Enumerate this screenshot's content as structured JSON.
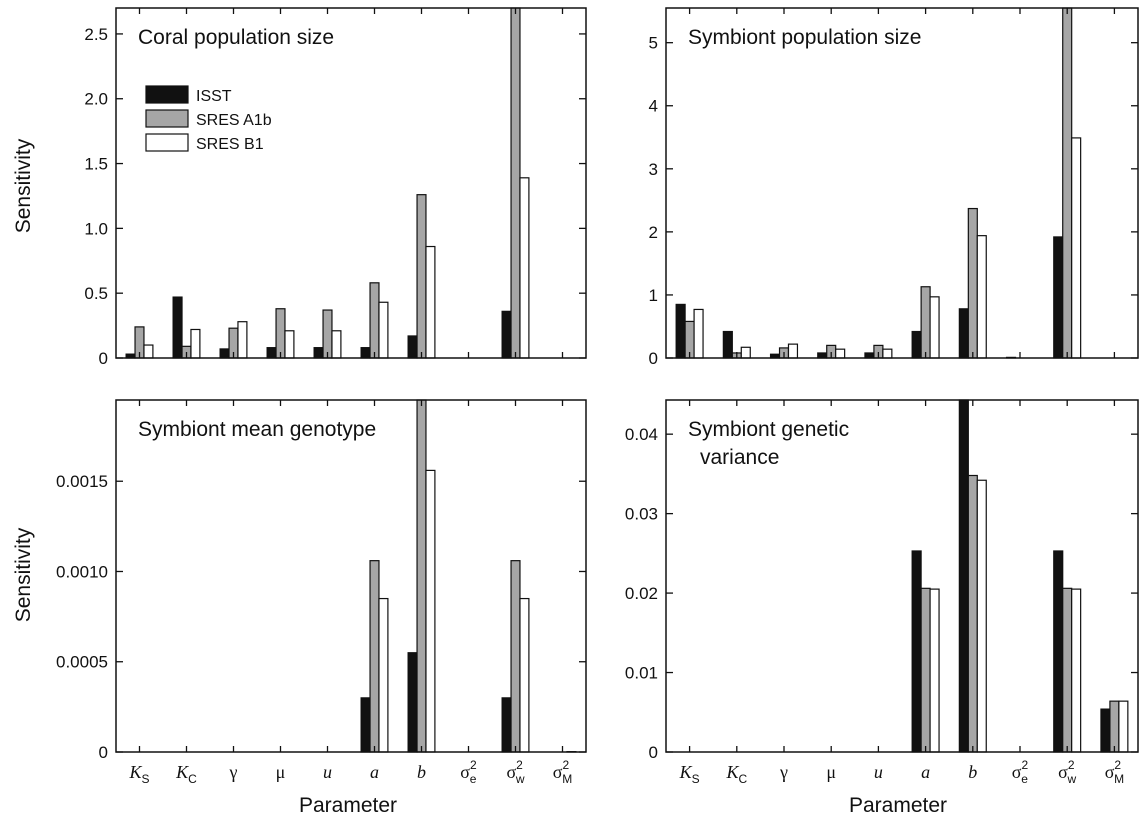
{
  "series_names": [
    "ISST",
    "SRES A1b",
    "SRES B1"
  ],
  "colors": {
    "ISST": "#111111",
    "SRES A1b": "#a6a6a6",
    "SRES B1": "#ffffff",
    "axis": "#111111"
  },
  "x_axis_label": "Parameter",
  "y_axis_label": "Sensitivity",
  "categories": [
    {
      "base": "K",
      "sub": "S",
      "sup": ""
    },
    {
      "base": "K",
      "sub": "C",
      "sup": ""
    },
    {
      "base": "γ",
      "sub": "",
      "sup": ""
    },
    {
      "base": "μ",
      "sub": "",
      "sup": ""
    },
    {
      "base": "u",
      "sub": "",
      "sup": ""
    },
    {
      "base": "a",
      "sub": "",
      "sup": ""
    },
    {
      "base": "b",
      "sub": "",
      "sup": ""
    },
    {
      "base": "σ",
      "sub": "e",
      "sup": "2"
    },
    {
      "base": "σ",
      "sub": "w",
      "sup": "2"
    },
    {
      "base": "σ",
      "sub": "M",
      "sup": "2"
    }
  ],
  "chart_data": [
    {
      "type": "bar",
      "title": "Coral population size",
      "legend": true,
      "legend_position": "top-left",
      "ylim": [
        0,
        2.7
      ],
      "yticks": [
        "0",
        "0.5",
        "1.0",
        "1.5",
        "2.0",
        "2.5"
      ],
      "ytick_values": [
        0,
        0.5,
        1.0,
        1.5,
        2.0,
        2.5
      ],
      "series": [
        {
          "name": "ISST",
          "values": [
            0.03,
            0.47,
            0.07,
            0.08,
            0.08,
            0.08,
            0.17,
            0,
            0.36,
            0
          ]
        },
        {
          "name": "SRES A1b",
          "values": [
            0.24,
            0.09,
            0.23,
            0.38,
            0.37,
            0.58,
            1.26,
            0,
            2.7,
            0
          ]
        },
        {
          "name": "SRES B1",
          "values": [
            0.1,
            0.22,
            0.28,
            0.21,
            0.21,
            0.43,
            0.86,
            0,
            1.39,
            0
          ]
        }
      ]
    },
    {
      "type": "bar",
      "title": "Symbiont population size",
      "legend": false,
      "ylim": [
        0,
        5.55
      ],
      "yticks": [
        "0",
        "1",
        "2",
        "3",
        "4",
        "5"
      ],
      "ytick_values": [
        0,
        1,
        2,
        3,
        4,
        5
      ],
      "series": [
        {
          "name": "ISST",
          "values": [
            0.85,
            0.42,
            0.06,
            0.08,
            0.08,
            0.42,
            0.78,
            0.01,
            1.92,
            0
          ]
        },
        {
          "name": "SRES A1b",
          "values": [
            0.58,
            0.08,
            0.16,
            0.2,
            0.2,
            1.13,
            2.37,
            0,
            5.55,
            0
          ]
        },
        {
          "name": "SRES B1",
          "values": [
            0.77,
            0.17,
            0.22,
            0.14,
            0.14,
            0.97,
            1.94,
            0,
            3.49,
            0
          ]
        }
      ]
    },
    {
      "type": "bar",
      "title": "Symbiont mean genotype",
      "legend": false,
      "ylim": [
        0,
        0.00195
      ],
      "yticks": [
        "0",
        "0.0005",
        "0.0010",
        "0.0015"
      ],
      "ytick_values": [
        0,
        0.0005,
        0.001,
        0.0015
      ],
      "series": [
        {
          "name": "ISST",
          "values": [
            0,
            0,
            0,
            0,
            0,
            0.0003,
            0.00055,
            0,
            0.0003,
            0
          ]
        },
        {
          "name": "SRES A1b",
          "values": [
            0,
            0,
            0,
            0,
            0,
            0.00106,
            0.00195,
            0,
            0.00106,
            0
          ]
        },
        {
          "name": "SRES B1",
          "values": [
            0,
            0,
            0,
            0,
            0,
            0.00085,
            0.00156,
            0,
            0.00085,
            2e-06
          ]
        }
      ]
    },
    {
      "type": "bar",
      "title": "Symbiont genetic variance",
      "title_lines": [
        "Symbiont genetic",
        "variance"
      ],
      "legend": false,
      "ylim": [
        0,
        0.0443
      ],
      "yticks": [
        "0",
        "0.01",
        "0.02",
        "0.03",
        "0.04"
      ],
      "ytick_values": [
        0,
        0.01,
        0.02,
        0.03,
        0.04
      ],
      "series": [
        {
          "name": "ISST",
          "values": [
            0,
            0,
            0,
            0,
            0,
            0.0253,
            0.0443,
            0,
            0.0253,
            0.0054
          ]
        },
        {
          "name": "SRES A1b",
          "values": [
            0,
            0,
            0,
            0,
            0,
            0.0206,
            0.0348,
            0,
            0.0206,
            0.0064
          ]
        },
        {
          "name": "SRES B1",
          "values": [
            0,
            0,
            0,
            0,
            0,
            0.0205,
            0.0342,
            0,
            0.0205,
            0.0064
          ]
        }
      ]
    }
  ]
}
